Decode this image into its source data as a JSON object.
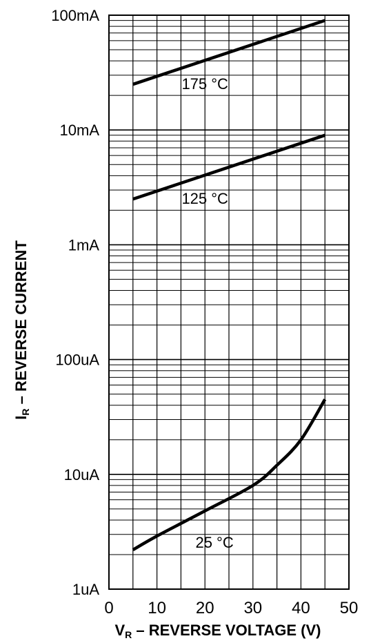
{
  "chart_data": {
    "type": "line",
    "title": "",
    "xlabel_main": "V",
    "xlabel_sub": "R",
    "xlabel_rest": " – REVERSE VOLTAGE (V)",
    "ylabel_main": "I",
    "ylabel_sub": "R",
    "ylabel_rest": " – REVERSE CURRENT",
    "x_scale": "linear",
    "y_scale": "log",
    "xlim": [
      0,
      50
    ],
    "ylim": [
      1e-06,
      0.1
    ],
    "x_ticks": [
      0,
      10,
      20,
      30,
      40,
      50
    ],
    "x_tick_labels": [
      "0",
      "10",
      "20",
      "30",
      "40",
      "50"
    ],
    "y_ticks": [
      1e-06,
      1e-05,
      0.0001,
      0.001,
      0.01,
      0.1
    ],
    "y_tick_labels": [
      "1uA",
      "10uA",
      "100uA",
      "1mA",
      "10mA",
      "100mA"
    ],
    "grid": true,
    "series": [
      {
        "name": "175 °C",
        "x": [
          5,
          45
        ],
        "y": [
          0.025,
          0.09
        ]
      },
      {
        "name": "125 °C",
        "x": [
          5,
          45
        ],
        "y": [
          0.0025,
          0.009
        ]
      },
      {
        "name": "25 °C",
        "x": [
          5,
          10,
          20,
          30,
          35,
          40,
          45
        ],
        "y": [
          2.2e-06,
          2.9e-06,
          4.8e-06,
          8e-06,
          1.2e-05,
          2e-05,
          4.5e-05
        ]
      }
    ]
  }
}
